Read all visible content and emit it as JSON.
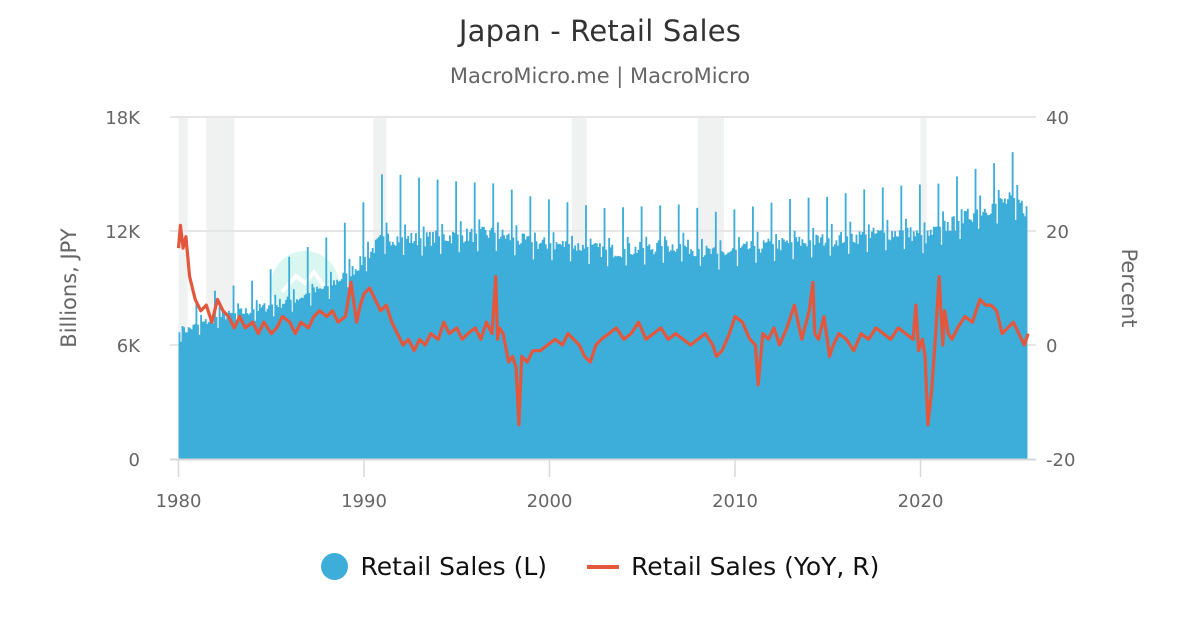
{
  "title": "Japan - Retail Sales",
  "subtitle": "MacroMicro.me | MacroMicro",
  "left_axis": {
    "title": "Billions, JPY",
    "ticks": [
      "0",
      "6K",
      "12K",
      "18K"
    ],
    "tick_values": [
      0,
      6000,
      12000,
      18000
    ]
  },
  "right_axis": {
    "title": "Percent",
    "ticks": [
      "-20",
      "0",
      "20",
      "40"
    ],
    "tick_values": [
      -20,
      0,
      20,
      40
    ]
  },
  "x_axis": {
    "ticks": [
      "1980",
      "1990",
      "2000",
      "2010",
      "2020"
    ],
    "tick_values": [
      1980,
      1990,
      2000,
      2010,
      2020
    ]
  },
  "legend": [
    {
      "label": "Retail Sales (L)",
      "color": "#3caed9",
      "marker": "circle"
    },
    {
      "label": "Retail Sales (YoY, R)",
      "color": "#e4573d",
      "marker": "line"
    }
  ],
  "colors": {
    "bars": "#3caed9",
    "line": "#e4573d",
    "recession": "#f0f2f2",
    "grid": "#e6e6e6"
  },
  "chart_data": {
    "type": "bar+line",
    "title": "Japan - Retail Sales",
    "subtitle": "MacroMicro.me | MacroMicro",
    "xlabel": "",
    "ylabel": "Billions, JPY",
    "ylabel_right": "Percent",
    "ylim": [
      0,
      18000
    ],
    "ylim_right": [
      -20,
      40
    ],
    "xlim": [
      1980,
      2025.8
    ],
    "grid": true,
    "legend_position": "bottom",
    "recession_bands": [
      [
        1980.0,
        1980.5
      ],
      [
        1981.5,
        1983.0
      ],
      [
        1990.5,
        1991.2
      ],
      [
        2001.2,
        2002.0
      ],
      [
        2008.0,
        2009.4
      ],
      [
        2020.0,
        2020.3
      ]
    ],
    "series": [
      {
        "name": "Retail Sales (L)",
        "axis": "left",
        "type": "bar",
        "note": "monthly values; approximate base level (non-December) and December peaks read from chart",
        "x": [
          1980,
          1982,
          1984,
          1986,
          1988,
          1989.5,
          1991,
          1993,
          1995,
          1997,
          1999,
          2001,
          2003,
          2005,
          2007,
          2009,
          2011,
          2013,
          2015,
          2017,
          2019,
          2020.3,
          2021,
          2022,
          2023,
          2024,
          2025,
          2025.7
        ],
        "base": [
          6600,
          7400,
          7800,
          8300,
          9000,
          10000,
          11600,
          11500,
          11700,
          11800,
          11300,
          11200,
          10900,
          11000,
          11200,
          10700,
          11100,
          11300,
          11500,
          11700,
          11900,
          11600,
          12100,
          12400,
          13000,
          13300,
          13600,
          13000
        ],
        "december_peak": [
          7700,
          8900,
          9400,
          10700,
          11700,
          12900,
          15100,
          14800,
          14600,
          14500,
          13800,
          13500,
          13200,
          13300,
          13400,
          13000,
          13300,
          13700,
          13800,
          14200,
          14400,
          0,
          14500,
          14900,
          15300,
          15600,
          16200,
          0
        ]
      },
      {
        "name": "Retail Sales (YoY, R)",
        "axis": "right",
        "type": "line",
        "x": [
          1980.0,
          1980.1,
          1980.25,
          1980.4,
          1980.6,
          1980.9,
          1981.2,
          1981.5,
          1981.8,
          1982.1,
          1982.4,
          1982.7,
          1983.0,
          1983.3,
          1983.6,
          1984.0,
          1984.3,
          1984.6,
          1985.0,
          1985.3,
          1985.6,
          1986.0,
          1986.3,
          1986.6,
          1987.0,
          1987.3,
          1987.6,
          1988.0,
          1988.3,
          1988.6,
          1989.0,
          1989.3,
          1989.6,
          1989.8,
          1990.0,
          1990.3,
          1990.6,
          1990.9,
          1991.2,
          1991.5,
          1991.8,
          1992.1,
          1992.4,
          1992.7,
          1993.0,
          1993.3,
          1993.6,
          1994.0,
          1994.3,
          1994.6,
          1995.0,
          1995.3,
          1995.6,
          1996.0,
          1996.3,
          1996.6,
          1996.9,
          1997.1,
          1997.2,
          1997.3,
          1997.5,
          1997.8,
          1998.0,
          1998.2,
          1998.35,
          1998.5,
          1998.8,
          1999.1,
          1999.5,
          1999.9,
          2000.3,
          2000.7,
          2001.0,
          2001.3,
          2001.6,
          2001.9,
          2002.2,
          2002.5,
          2002.8,
          2003.2,
          2003.6,
          2004.0,
          2004.4,
          2004.8,
          2005.2,
          2005.6,
          2006.0,
          2006.4,
          2006.8,
          2007.2,
          2007.6,
          2008.0,
          2008.4,
          2008.8,
          2009.0,
          2009.3,
          2009.7,
          2010.0,
          2010.4,
          2010.8,
          2011.1,
          2011.25,
          2011.5,
          2011.8,
          2012.1,
          2012.4,
          2012.8,
          2013.2,
          2013.6,
          2014.0,
          2014.2,
          2014.3,
          2014.5,
          2014.8,
          2015.1,
          2015.3,
          2015.6,
          2016.0,
          2016.4,
          2016.8,
          2017.2,
          2017.6,
          2018.0,
          2018.4,
          2018.8,
          2019.2,
          2019.6,
          2019.75,
          2019.9,
          2020.1,
          2020.25,
          2020.4,
          2020.6,
          2020.8,
          2021.0,
          2021.2,
          2021.3,
          2021.5,
          2021.7,
          2022.0,
          2022.4,
          2022.8,
          2023.0,
          2023.2,
          2023.5,
          2023.8,
          2024.1,
          2024.4,
          2024.7,
          2025.0,
          2025.3,
          2025.6,
          2025.8
        ],
        "values": [
          17,
          21,
          17,
          19,
          12,
          8,
          6,
          7,
          4,
          8,
          6,
          5,
          3,
          5,
          3,
          4,
          2,
          4,
          2,
          3,
          5,
          4,
          2,
          4,
          3,
          5,
          6,
          5,
          6,
          4,
          5,
          11,
          4,
          7,
          9,
          10,
          8,
          6,
          7,
          4,
          2,
          0,
          1,
          -1,
          1,
          0,
          2,
          1,
          4,
          2,
          3,
          1,
          2,
          3,
          1,
          4,
          2,
          12,
          1,
          3,
          2,
          -3,
          -2,
          -4,
          -14,
          -2,
          -3,
          -1,
          -1,
          0,
          1,
          0,
          2,
          1,
          0,
          -2,
          -3,
          0,
          1,
          2,
          3,
          1,
          2,
          4,
          1,
          2,
          3,
          1,
          2,
          1,
          0,
          1,
          2,
          0,
          -2,
          -1,
          2,
          5,
          4,
          1,
          0,
          -7,
          2,
          1,
          3,
          0,
          3,
          7,
          1,
          6,
          11,
          2,
          1,
          5,
          -2,
          0,
          2,
          1,
          -1,
          2,
          1,
          3,
          2,
          1,
          3,
          2,
          1,
          7,
          -1,
          1,
          -2,
          -14,
          -8,
          1,
          12,
          0,
          6,
          2,
          1,
          3,
          5,
          4,
          6,
          8,
          7,
          7,
          6,
          2,
          3,
          4,
          2,
          0,
          2
        ]
      }
    ]
  }
}
